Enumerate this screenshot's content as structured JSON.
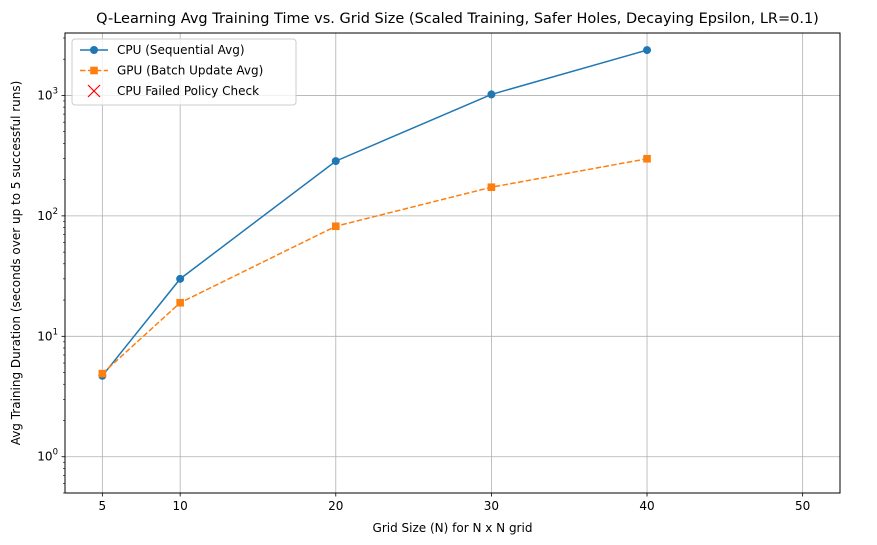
{
  "chart_data": {
    "type": "line",
    "title": "Q-Learning Avg Training Time vs. Grid Size (Scaled Training, Safer Holes, Decaying Epsilon, LR=0.1)",
    "xlabel": "Grid Size (N) for N x N grid",
    "ylabel": "Avg Training Duration (seconds over up to 5 successful runs)",
    "y_scale": "log",
    "xlim": [
      2.6,
      52.4
    ],
    "ylim": [
      0.5,
      3300
    ],
    "grid": true,
    "legend_position": "top-left",
    "x_ticks": [
      5,
      10,
      20,
      30,
      40,
      50
    ],
    "y_ticks": [
      {
        "value": 1,
        "base": "10",
        "exp": "0"
      },
      {
        "value": 10,
        "base": "10",
        "exp": "1"
      },
      {
        "value": 100,
        "base": "10",
        "exp": "2"
      },
      {
        "value": 1000,
        "base": "10",
        "exp": "3"
      }
    ],
    "series": [
      {
        "name": "CPU (Sequential Avg)",
        "color": "#1f77b4",
        "marker": "circle",
        "linestyle": "solid",
        "x": [
          5,
          10,
          20,
          30,
          40
        ],
        "y": [
          4.7,
          30,
          285,
          1020,
          2380
        ]
      },
      {
        "name": "GPU (Batch Update Avg)",
        "color": "#ff7f0e",
        "marker": "square",
        "linestyle": "dashed",
        "x": [
          5,
          10,
          20,
          30,
          40
        ],
        "y": [
          4.9,
          19,
          82,
          173,
          298
        ]
      },
      {
        "name": "CPU Failed Policy Check",
        "color": "#ff0000",
        "marker": "x",
        "linestyle": "none",
        "x": [],
        "y": []
      }
    ]
  }
}
